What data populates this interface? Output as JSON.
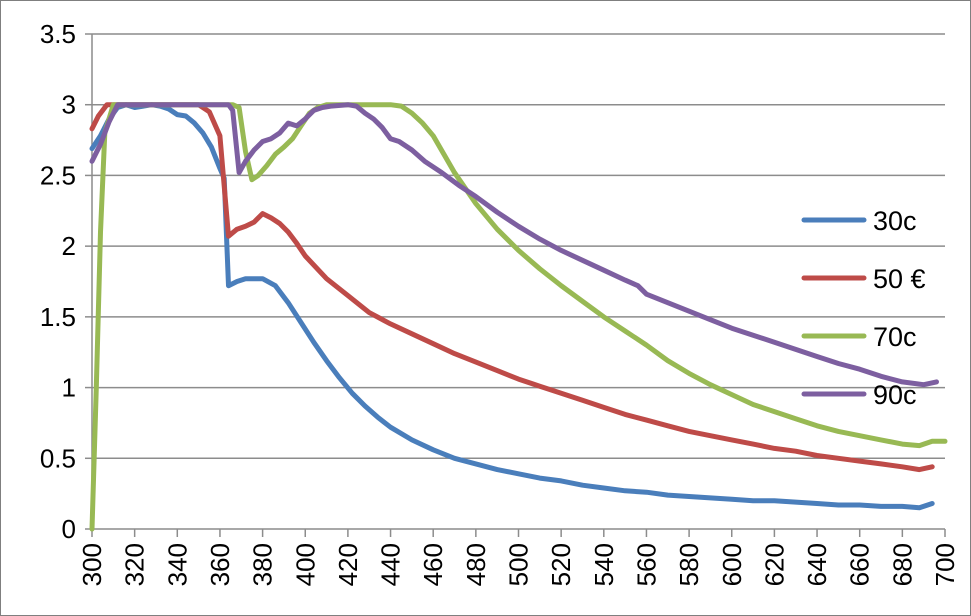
{
  "chart_data": {
    "type": "line",
    "title": "",
    "xlabel": "",
    "ylabel": "",
    "xlim": [
      300,
      700
    ],
    "ylim": [
      0,
      3.5
    ],
    "x_ticks": [
      "300",
      "320",
      "340",
      "360",
      "380",
      "400",
      "420",
      "440",
      "460",
      "480",
      "500",
      "520",
      "540",
      "560",
      "580",
      "600",
      "620",
      "640",
      "660",
      "680",
      "700"
    ],
    "y_ticks": [
      "0",
      "0.5",
      "1",
      "1.5",
      "2",
      "2.5",
      "3",
      "3.5"
    ],
    "grid": "horizontal",
    "legend_position": "right",
    "series": [
      {
        "name": "30c",
        "color": "#4a7ebb",
        "points": [
          [
            300,
            2.69
          ],
          [
            304,
            2.78
          ],
          [
            308,
            2.9
          ],
          [
            312,
            2.98
          ],
          [
            316,
            3.0
          ],
          [
            320,
            2.98
          ],
          [
            324,
            2.99
          ],
          [
            328,
            3.0
          ],
          [
            332,
            2.99
          ],
          [
            336,
            2.97
          ],
          [
            340,
            2.93
          ],
          [
            344,
            2.92
          ],
          [
            348,
            2.87
          ],
          [
            352,
            2.8
          ],
          [
            356,
            2.7
          ],
          [
            360,
            2.55
          ],
          [
            362,
            2.48
          ],
          [
            364,
            1.72
          ],
          [
            368,
            1.75
          ],
          [
            372,
            1.77
          ],
          [
            380,
            1.77
          ],
          [
            386,
            1.72
          ],
          [
            392,
            1.6
          ],
          [
            398,
            1.46
          ],
          [
            404,
            1.32
          ],
          [
            410,
            1.19
          ],
          [
            416,
            1.07
          ],
          [
            422,
            0.96
          ],
          [
            428,
            0.87
          ],
          [
            434,
            0.79
          ],
          [
            440,
            0.72
          ],
          [
            450,
            0.63
          ],
          [
            460,
            0.56
          ],
          [
            470,
            0.5
          ],
          [
            480,
            0.46
          ],
          [
            490,
            0.42
          ],
          [
            500,
            0.39
          ],
          [
            510,
            0.36
          ],
          [
            520,
            0.34
          ],
          [
            530,
            0.31
          ],
          [
            540,
            0.29
          ],
          [
            550,
            0.27
          ],
          [
            560,
            0.26
          ],
          [
            570,
            0.24
          ],
          [
            580,
            0.23
          ],
          [
            590,
            0.22
          ],
          [
            600,
            0.21
          ],
          [
            610,
            0.2
          ],
          [
            620,
            0.2
          ],
          [
            630,
            0.19
          ],
          [
            640,
            0.18
          ],
          [
            650,
            0.17
          ],
          [
            660,
            0.17
          ],
          [
            670,
            0.16
          ],
          [
            680,
            0.16
          ],
          [
            688,
            0.15
          ],
          [
            694,
            0.18
          ]
        ]
      },
      {
        "name": "50 €",
        "color": "#be4b48",
        "points": [
          [
            300,
            2.83
          ],
          [
            303,
            2.92
          ],
          [
            307,
            3.0
          ],
          [
            312,
            3.0
          ],
          [
            320,
            3.0
          ],
          [
            330,
            3.0
          ],
          [
            340,
            3.0
          ],
          [
            350,
            3.0
          ],
          [
            355,
            2.95
          ],
          [
            360,
            2.78
          ],
          [
            364,
            2.07
          ],
          [
            368,
            2.12
          ],
          [
            372,
            2.14
          ],
          [
            376,
            2.17
          ],
          [
            380,
            2.23
          ],
          [
            384,
            2.2
          ],
          [
            388,
            2.16
          ],
          [
            392,
            2.1
          ],
          [
            396,
            2.02
          ],
          [
            400,
            1.93
          ],
          [
            410,
            1.77
          ],
          [
            420,
            1.65
          ],
          [
            430,
            1.53
          ],
          [
            440,
            1.45
          ],
          [
            450,
            1.38
          ],
          [
            460,
            1.31
          ],
          [
            470,
            1.24
          ],
          [
            480,
            1.18
          ],
          [
            490,
            1.12
          ],
          [
            500,
            1.06
          ],
          [
            510,
            1.01
          ],
          [
            520,
            0.96
          ],
          [
            530,
            0.91
          ],
          [
            540,
            0.86
          ],
          [
            550,
            0.81
          ],
          [
            560,
            0.77
          ],
          [
            570,
            0.73
          ],
          [
            580,
            0.69
          ],
          [
            590,
            0.66
          ],
          [
            600,
            0.63
          ],
          [
            610,
            0.6
          ],
          [
            620,
            0.57
          ],
          [
            630,
            0.55
          ],
          [
            640,
            0.52
          ],
          [
            650,
            0.5
          ],
          [
            660,
            0.48
          ],
          [
            670,
            0.46
          ],
          [
            680,
            0.44
          ],
          [
            688,
            0.42
          ],
          [
            694,
            0.44
          ]
        ]
      },
      {
        "name": "70c",
        "color": "#98b954",
        "points": [
          [
            300,
            0.0
          ],
          [
            302,
            1.0
          ],
          [
            304,
            2.1
          ],
          [
            306,
            2.8
          ],
          [
            310,
            3.0
          ],
          [
            320,
            3.0
          ],
          [
            330,
            3.0
          ],
          [
            340,
            3.0
          ],
          [
            350,
            3.0
          ],
          [
            360,
            3.0
          ],
          [
            366,
            3.0
          ],
          [
            369,
            2.98
          ],
          [
            372,
            2.67
          ],
          [
            375,
            2.47
          ],
          [
            378,
            2.5
          ],
          [
            382,
            2.57
          ],
          [
            386,
            2.65
          ],
          [
            390,
            2.7
          ],
          [
            394,
            2.76
          ],
          [
            398,
            2.85
          ],
          [
            402,
            2.94
          ],
          [
            406,
            2.98
          ],
          [
            410,
            3.0
          ],
          [
            420,
            3.0
          ],
          [
            430,
            3.0
          ],
          [
            440,
            3.0
          ],
          [
            445,
            2.99
          ],
          [
            450,
            2.94
          ],
          [
            455,
            2.87
          ],
          [
            460,
            2.78
          ],
          [
            465,
            2.65
          ],
          [
            470,
            2.52
          ],
          [
            480,
            2.3
          ],
          [
            490,
            2.12
          ],
          [
            500,
            1.97
          ],
          [
            510,
            1.84
          ],
          [
            520,
            1.72
          ],
          [
            530,
            1.61
          ],
          [
            540,
            1.5
          ],
          [
            550,
            1.4
          ],
          [
            560,
            1.3
          ],
          [
            570,
            1.19
          ],
          [
            580,
            1.1
          ],
          [
            590,
            1.02
          ],
          [
            600,
            0.95
          ],
          [
            610,
            0.88
          ],
          [
            620,
            0.83
          ],
          [
            630,
            0.78
          ],
          [
            640,
            0.73
          ],
          [
            650,
            0.69
          ],
          [
            660,
            0.66
          ],
          [
            670,
            0.63
          ],
          [
            680,
            0.6
          ],
          [
            688,
            0.59
          ],
          [
            694,
            0.62
          ],
          [
            700,
            0.62
          ]
        ]
      },
      {
        "name": "90c",
        "color": "#7d5fa0",
        "points": [
          [
            300,
            2.6
          ],
          [
            304,
            2.72
          ],
          [
            308,
            2.88
          ],
          [
            312,
            3.0
          ],
          [
            320,
            3.0
          ],
          [
            330,
            3.0
          ],
          [
            340,
            3.0
          ],
          [
            350,
            3.0
          ],
          [
            360,
            3.0
          ],
          [
            364,
            3.0
          ],
          [
            366,
            2.96
          ],
          [
            369,
            2.52
          ],
          [
            372,
            2.6
          ],
          [
            376,
            2.68
          ],
          [
            380,
            2.74
          ],
          [
            384,
            2.76
          ],
          [
            388,
            2.8
          ],
          [
            392,
            2.87
          ],
          [
            396,
            2.85
          ],
          [
            400,
            2.9
          ],
          [
            404,
            2.96
          ],
          [
            408,
            2.98
          ],
          [
            412,
            2.99
          ],
          [
            420,
            3.0
          ],
          [
            424,
            2.99
          ],
          [
            428,
            2.94
          ],
          [
            432,
            2.9
          ],
          [
            436,
            2.84
          ],
          [
            440,
            2.76
          ],
          [
            444,
            2.74
          ],
          [
            450,
            2.68
          ],
          [
            456,
            2.6
          ],
          [
            464,
            2.52
          ],
          [
            472,
            2.43
          ],
          [
            480,
            2.35
          ],
          [
            490,
            2.24
          ],
          [
            500,
            2.14
          ],
          [
            510,
            2.05
          ],
          [
            520,
            1.97
          ],
          [
            530,
            1.9
          ],
          [
            540,
            1.83
          ],
          [
            550,
            1.76
          ],
          [
            556,
            1.72
          ],
          [
            560,
            1.66
          ],
          [
            570,
            1.6
          ],
          [
            580,
            1.54
          ],
          [
            590,
            1.48
          ],
          [
            600,
            1.42
          ],
          [
            610,
            1.37
          ],
          [
            620,
            1.32
          ],
          [
            630,
            1.27
          ],
          [
            640,
            1.22
          ],
          [
            650,
            1.17
          ],
          [
            660,
            1.13
          ],
          [
            670,
            1.08
          ],
          [
            680,
            1.04
          ],
          [
            690,
            1.02
          ],
          [
            696,
            1.04
          ]
        ]
      }
    ]
  }
}
